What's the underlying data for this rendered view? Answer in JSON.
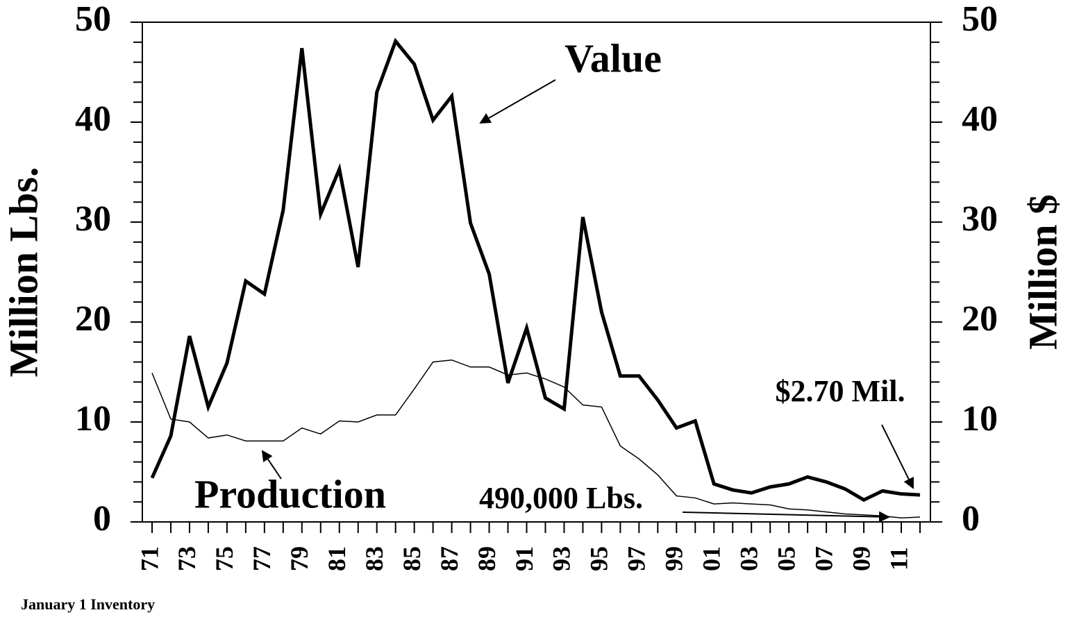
{
  "chart_data": {
    "type": "line",
    "y_label": "Million Lbs.",
    "y2_label": "Million $",
    "note": "January 1 Inventory",
    "categories": [
      "71",
      null,
      "73",
      null,
      "75",
      null,
      "77",
      null,
      "79",
      null,
      "81",
      null,
      "83",
      null,
      "85",
      null,
      "87",
      null,
      "89",
      null,
      "91",
      null,
      "93",
      null,
      "95",
      null,
      "97",
      null,
      "99",
      null,
      "01",
      null,
      "03",
      null,
      "05",
      null,
      "07",
      null,
      "09",
      null,
      "11",
      null
    ],
    "series": [
      {
        "name": "Value",
        "color": "#000000",
        "axis": "y2",
        "values": [
          4.4,
          8.6,
          18.6,
          11.5,
          15.9,
          24.1,
          22.8,
          31.2,
          47.4,
          30.8,
          35.3,
          25.5,
          43.0,
          48.1,
          45.8,
          40.2,
          42.6,
          29.9,
          24.8,
          13.9,
          19.4,
          12.4,
          11.3,
          30.5,
          21.0,
          14.6,
          14.6,
          12.2,
          9.4,
          10.1,
          3.8,
          3.2,
          2.9,
          3.5,
          3.8,
          4.5,
          4.0,
          3.3,
          2.2,
          3.1,
          2.8,
          2.7
        ],
        "value_labels": [
          null,
          null,
          null,
          null,
          null,
          null,
          null,
          null,
          null,
          null,
          null,
          null,
          null,
          null,
          null,
          null,
          null,
          null,
          null,
          null,
          null,
          null,
          null,
          null,
          null,
          null,
          null,
          null,
          null,
          null,
          null,
          null,
          null,
          null,
          null,
          null,
          null,
          null,
          null,
          null,
          null,
          "$2.70 Mil."
        ]
      },
      {
        "name": "Production",
        "color": "#000000",
        "values": [
          14.9,
          10.3,
          10.0,
          8.4,
          8.7,
          8.1,
          8.1,
          8.1,
          9.4,
          8.8,
          10.1,
          10.0,
          10.7,
          10.7,
          13.3,
          16.0,
          16.2,
          15.5,
          15.5,
          14.7,
          14.9,
          14.3,
          13.5,
          11.7,
          11.5,
          7.6,
          6.3,
          4.7,
          2.6,
          2.4,
          1.8,
          1.9,
          1.8,
          1.7,
          1.3,
          1.2,
          1.0,
          0.8,
          0.7,
          0.6,
          0.4,
          0.49
        ],
        "value_labels": [
          null,
          null,
          null,
          null,
          null,
          null,
          null,
          null,
          null,
          null,
          null,
          null,
          null,
          null,
          null,
          null,
          null,
          null,
          null,
          null,
          null,
          null,
          null,
          null,
          null,
          null,
          null,
          null,
          null,
          null,
          null,
          null,
          null,
          null,
          null,
          null,
          null,
          null,
          null,
          null,
          null,
          "490,000 Lbs."
        ]
      }
    ],
    "ylim": [
      0,
      50
    ],
    "yticks": [
      0,
      10,
      20,
      30,
      40,
      50
    ],
    "y2lim": [
      0,
      50
    ],
    "y2ticks": [
      0,
      10,
      20,
      30,
      40,
      50
    ]
  }
}
